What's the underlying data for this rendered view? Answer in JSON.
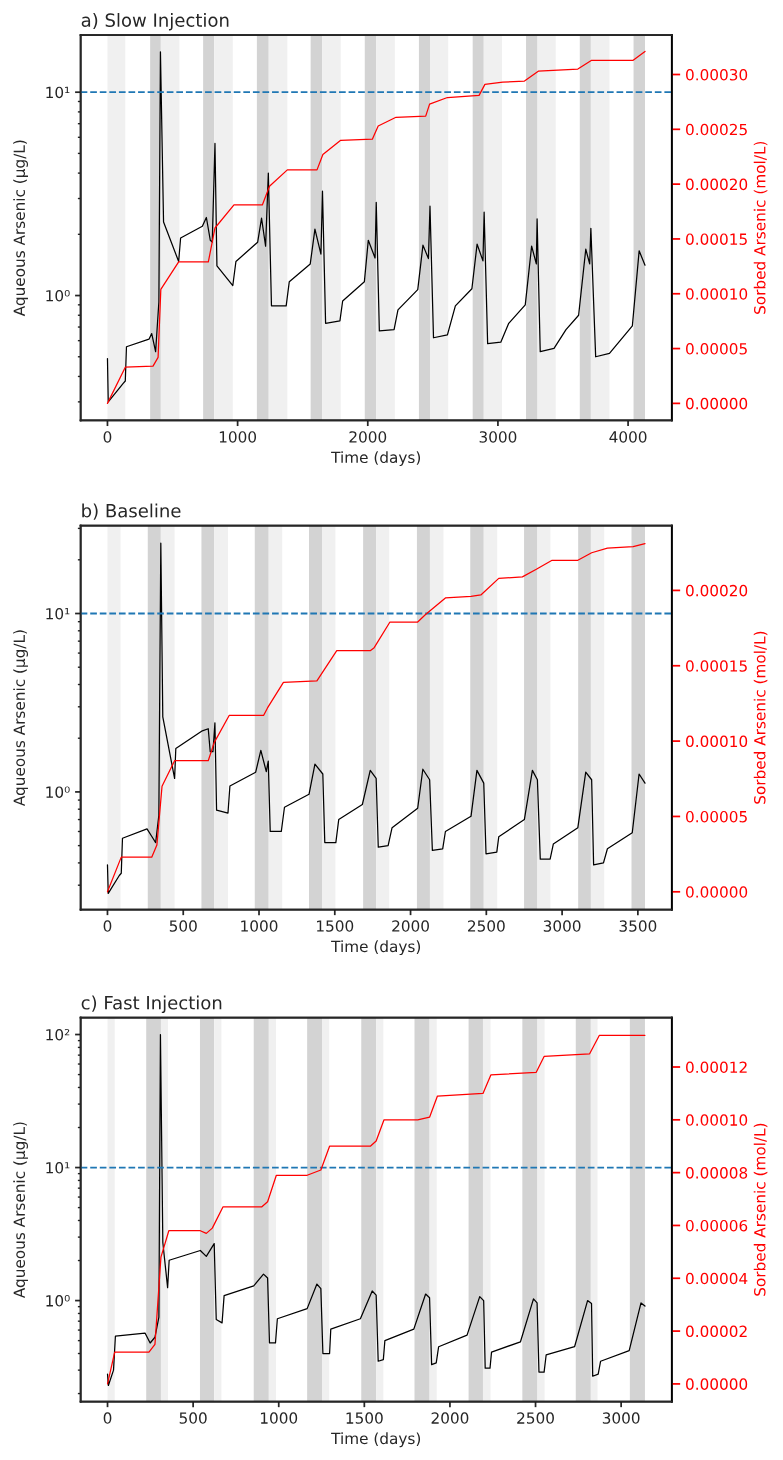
{
  "chart_data": [
    {
      "type": "line",
      "title": "a) Slow Injection",
      "xlabel": "Time (days)",
      "ylabel": "Aqueous Arsenic (µg/L)",
      "y2label": "Sorbed Arsenic (mol/L)",
      "xlim": [
        -206,
        4336
      ],
      "xticks": [
        0,
        1000,
        2000,
        3000,
        4000
      ],
      "log": true,
      "ylim": [
        0.243,
        19.1
      ],
      "yticks": [
        {
          "value": 1,
          "label": "10⁰"
        },
        {
          "value": 10,
          "label": "10¹"
        }
      ],
      "y2lim": [
        -1.56e-05,
        0.000336
      ],
      "y2ticks": [
        {
          "value": 0,
          "label": "0.00000"
        },
        {
          "value": 5e-05,
          "label": "0.00005"
        },
        {
          "value": 0.0001,
          "label": "0.00010"
        },
        {
          "value": 0.00015,
          "label": "0.00015"
        },
        {
          "value": 0.0002,
          "label": "0.00020"
        },
        {
          "value": 0.00025,
          "label": "0.00025"
        },
        {
          "value": 0.0003,
          "label": "0.00030"
        }
      ],
      "grid": false,
      "line_style": "solid",
      "marker": "none",
      "ref_lines": [
        {
          "axis": "y",
          "value": 10,
          "color": "#1f77b4",
          "line_style": "dashed"
        }
      ],
      "bands": [
        {
          "axis": "x",
          "from": 0,
          "to": 137,
          "color": "#f0f0f0"
        },
        {
          "axis": "x",
          "from": 328,
          "to": 410,
          "color": "#d3d3d3"
        },
        {
          "axis": "x",
          "from": 410,
          "to": 553,
          "color": "#f0f0f0"
        },
        {
          "axis": "x",
          "from": 735,
          "to": 820,
          "color": "#d3d3d3"
        },
        {
          "axis": "x",
          "from": 820,
          "to": 963,
          "color": "#f0f0f0"
        },
        {
          "axis": "x",
          "from": 1148,
          "to": 1239,
          "color": "#d3d3d3"
        },
        {
          "axis": "x",
          "from": 1239,
          "to": 1382,
          "color": "#f0f0f0"
        },
        {
          "axis": "x",
          "from": 1561,
          "to": 1649,
          "color": "#d3d3d3"
        },
        {
          "axis": "x",
          "from": 1649,
          "to": 1792,
          "color": "#f0f0f0"
        },
        {
          "axis": "x",
          "from": 1977,
          "to": 2065,
          "color": "#d3d3d3"
        },
        {
          "axis": "x",
          "from": 2065,
          "to": 2208,
          "color": "#f0f0f0"
        },
        {
          "axis": "x",
          "from": 2393,
          "to": 2478,
          "color": "#d3d3d3"
        },
        {
          "axis": "x",
          "from": 2478,
          "to": 2618,
          "color": "#f0f0f0"
        },
        {
          "axis": "x",
          "from": 2806,
          "to": 2891,
          "color": "#d3d3d3"
        },
        {
          "axis": "x",
          "from": 2891,
          "to": 3031,
          "color": "#f0f0f0"
        },
        {
          "axis": "x",
          "from": 3216,
          "to": 3304,
          "color": "#d3d3d3"
        },
        {
          "axis": "x",
          "from": 3304,
          "to": 3444,
          "color": "#f0f0f0"
        },
        {
          "axis": "x",
          "from": 3629,
          "to": 3714,
          "color": "#d3d3d3"
        },
        {
          "axis": "x",
          "from": 3714,
          "to": 3857,
          "color": "#f0f0f0"
        },
        {
          "axis": "x",
          "from": 4042,
          "to": 4130,
          "color": "#d3d3d3"
        }
      ],
      "series": [
        {
          "type": "line",
          "axis": "y2",
          "color": "#ff0000",
          "x": [
            0,
            137,
            350,
            389,
            410,
            547,
            775,
            826,
            972,
            1190,
            1245,
            1382,
            1610,
            1655,
            1792,
            2035,
            2080,
            2217,
            2445,
            2475,
            2612,
            2855,
            2900,
            3037,
            3204,
            3310,
            3614,
            3720,
            4039,
            4130
          ],
          "values": [
            0,
            3.3e-05,
            3.4e-05,
            4.2e-05,
            0.000104,
            0.000129,
            0.000129,
            0.00016,
            0.000181,
            0.000181,
            0.000198,
            0.000213,
            0.000213,
            0.000227,
            0.00024,
            0.000241,
            0.000253,
            0.000261,
            0.000262,
            0.000273,
            0.000279,
            0.000281,
            0.000291,
            0.000293,
            0.000294,
            0.000303,
            0.000305,
            0.000313,
            0.000313,
            0.000321
          ]
        },
        {
          "type": "line",
          "axis": "y",
          "color": "#000000",
          "x": [
            0,
            6,
            121,
            137,
            146,
            319,
            340,
            370,
            395,
            407,
            431,
            547,
            562,
            729,
            760,
            790,
            805,
            826,
            841,
            963,
            987,
            1154,
            1184,
            1215,
            1236,
            1260,
            1373,
            1397,
            1558,
            1594,
            1640,
            1652,
            1676,
            1786,
            1807,
            1974,
            2004,
            2056,
            2065,
            2089,
            2202,
            2232,
            2384,
            2424,
            2466,
            2478,
            2505,
            2612,
            2673,
            2800,
            2840,
            2885,
            2894,
            2921,
            3022,
            3083,
            3210,
            3259,
            3295,
            3301,
            3325,
            3431,
            3523,
            3620,
            3675,
            3705,
            3714,
            3751,
            3857,
            4033,
            4085,
            4130
          ],
          "values": [
            0.49,
            0.3,
            0.37,
            0.38,
            0.56,
            0.61,
            0.65,
            0.53,
            0.93,
            15.8,
            2.3,
            1.47,
            1.92,
            2.19,
            2.42,
            1.87,
            1.83,
            5.6,
            1.4,
            1.12,
            1.47,
            1.83,
            2.4,
            1.75,
            4.0,
            0.89,
            0.89,
            1.17,
            1.43,
            2.12,
            1.6,
            3.26,
            0.73,
            0.75,
            0.94,
            1.17,
            1.87,
            1.53,
            2.87,
            0.67,
            0.68,
            0.85,
            1.07,
            1.77,
            1.52,
            2.75,
            0.62,
            0.64,
            0.89,
            1.08,
            1.79,
            1.48,
            2.57,
            0.58,
            0.59,
            0.73,
            0.9,
            1.75,
            1.43,
            2.38,
            0.53,
            0.55,
            0.68,
            0.8,
            1.69,
            1.43,
            2.14,
            0.5,
            0.52,
            0.71,
            1.66,
            1.41
          ]
        }
      ]
    },
    {
      "type": "line",
      "title": "b) Baseline",
      "xlabel": "Time (days)",
      "ylabel": "Aqueous Arsenic (µg/L)",
      "y2label": "Sorbed Arsenic (mol/L)",
      "xlim": [
        -177,
        3724
      ],
      "xticks": [
        0,
        500,
        1000,
        1500,
        2000,
        2500,
        3000,
        3500
      ],
      "log": true,
      "ylim": [
        0.219,
        31.1
      ],
      "yticks": [
        {
          "value": 1,
          "label": "10⁰"
        },
        {
          "value": 10,
          "label": "10¹"
        }
      ],
      "y2lim": [
        -1.18e-05,
        0.000243
      ],
      "y2ticks": [
        {
          "value": 0,
          "label": "0.00000"
        },
        {
          "value": 5e-05,
          "label": "0.00005"
        },
        {
          "value": 0.0001,
          "label": "0.00010"
        },
        {
          "value": 0.00015,
          "label": "0.00015"
        },
        {
          "value": 0.0002,
          "label": "0.00020"
        }
      ],
      "grid": false,
      "line_style": "solid",
      "marker": "none",
      "ref_lines": [
        {
          "axis": "y",
          "value": 10,
          "color": "#1f77b4",
          "line_style": "dashed"
        }
      ],
      "bands": [
        {
          "axis": "x",
          "from": 0,
          "to": 86,
          "color": "#f0f0f0"
        },
        {
          "axis": "x",
          "from": 266,
          "to": 352,
          "color": "#d3d3d3"
        },
        {
          "axis": "x",
          "from": 352,
          "to": 443,
          "color": "#f0f0f0"
        },
        {
          "axis": "x",
          "from": 620,
          "to": 704,
          "color": "#d3d3d3"
        },
        {
          "axis": "x",
          "from": 704,
          "to": 795,
          "color": "#f0f0f0"
        },
        {
          "axis": "x",
          "from": 972,
          "to": 1064,
          "color": "#d3d3d3"
        },
        {
          "axis": "x",
          "from": 1064,
          "to": 1153,
          "color": "#f0f0f0"
        },
        {
          "axis": "x",
          "from": 1330,
          "to": 1416,
          "color": "#d3d3d3"
        },
        {
          "axis": "x",
          "from": 1416,
          "to": 1504,
          "color": "#f0f0f0"
        },
        {
          "axis": "x",
          "from": 1687,
          "to": 1773,
          "color": "#d3d3d3"
        },
        {
          "axis": "x",
          "from": 1773,
          "to": 1859,
          "color": "#f0f0f0"
        },
        {
          "axis": "x",
          "from": 2042,
          "to": 2128,
          "color": "#d3d3d3"
        },
        {
          "axis": "x",
          "from": 2128,
          "to": 2217,
          "color": "#f0f0f0"
        },
        {
          "axis": "x",
          "from": 2394,
          "to": 2483,
          "color": "#d3d3d3"
        },
        {
          "axis": "x",
          "from": 2483,
          "to": 2572,
          "color": "#f0f0f0"
        },
        {
          "axis": "x",
          "from": 2749,
          "to": 2837,
          "color": "#d3d3d3"
        },
        {
          "axis": "x",
          "from": 2837,
          "to": 2923,
          "color": "#f0f0f0"
        },
        {
          "axis": "x",
          "from": 3106,
          "to": 3190,
          "color": "#d3d3d3"
        },
        {
          "axis": "x",
          "from": 3190,
          "to": 3278,
          "color": "#f0f0f0"
        },
        {
          "axis": "x",
          "from": 3458,
          "to": 3547,
          "color": "#d3d3d3"
        }
      ],
      "series": [
        {
          "type": "line",
          "axis": "y2",
          "color": "#ff0000",
          "x": [
            0,
            91,
            292,
            326,
            360,
            443,
            665,
            704,
            803,
            1030,
            1056,
            1161,
            1382,
            1408,
            1513,
            1734,
            1760,
            1864,
            2047,
            2099,
            2230,
            2399,
            2464,
            2582,
            2738,
            2830,
            2934,
            3104,
            3195,
            3299,
            3469,
            3547
          ],
          "values": [
            0,
            2.3e-05,
            2.3e-05,
            3.1e-05,
            7e-05,
            8.7e-05,
            8.7e-05,
            9.9e-05,
            0.000117,
            0.000117,
            0.000122,
            0.000139,
            0.00014,
            0.000144,
            0.00016,
            0.00016,
            0.000162,
            0.000179,
            0.000179,
            0.000184,
            0.000195,
            0.000196,
            0.000197,
            0.000208,
            0.000209,
            0.000214,
            0.00022,
            0.00022,
            0.000225,
            0.000228,
            0.000229,
            0.000231
          ]
        },
        {
          "type": "line",
          "axis": "y",
          "color": "#000000",
          "x": [
            0,
            5,
            78,
            91,
            99,
            261,
            300,
            318,
            339,
            352,
            365,
            443,
            451,
            626,
            665,
            678,
            696,
            709,
            720,
            795,
            808,
            978,
            1012,
            1048,
            1061,
            1074,
            1147,
            1168,
            1330,
            1369,
            1421,
            1434,
            1507,
            1526,
            1682,
            1734,
            1773,
            1787,
            1852,
            1878,
            2047,
            2081,
            2126,
            2144,
            2212,
            2230,
            2399,
            2438,
            2483,
            2498,
            2569,
            2582,
            2751,
            2804,
            2837,
            2856,
            2921,
            2942,
            3104,
            3156,
            3195,
            3208,
            3273,
            3299,
            3463,
            3508,
            3547
          ],
          "values": [
            0.39,
            0.27,
            0.34,
            0.35,
            0.55,
            0.62,
            0.55,
            0.52,
            0.74,
            24.8,
            2.63,
            1.19,
            1.75,
            2.2,
            2.26,
            1.68,
            1.68,
            2.44,
            0.79,
            0.76,
            1.08,
            1.29,
            1.71,
            1.3,
            1.49,
            0.6,
            0.6,
            0.82,
            0.97,
            1.43,
            1.26,
            0.52,
            0.52,
            0.7,
            0.85,
            1.32,
            1.19,
            0.49,
            0.5,
            0.63,
            0.81,
            1.34,
            1.17,
            0.47,
            0.48,
            0.6,
            0.73,
            1.32,
            1.12,
            0.45,
            0.46,
            0.56,
            0.7,
            1.32,
            1.17,
            0.42,
            0.42,
            0.51,
            0.63,
            1.29,
            1.17,
            0.39,
            0.4,
            0.48,
            0.59,
            1.26,
            1.12
          ]
        }
      ]
    },
    {
      "type": "line",
      "title": "c) Fast Injection",
      "xlabel": "Time (days)",
      "ylabel": "Aqueous Arsenic (µg/L)",
      "y2label": "Sorbed Arsenic (mol/L)",
      "xlim": [
        -157,
        3296
      ],
      "xticks": [
        0,
        500,
        1000,
        1500,
        2000,
        2500,
        3000
      ],
      "log": true,
      "ylim": [
        0.174,
        134
      ],
      "yticks": [
        {
          "value": 1,
          "label": "10⁰"
        },
        {
          "value": 10,
          "label": "10¹"
        },
        {
          "value": 100,
          "label": "10²"
        }
      ],
      "y2lim": [
        -6.7e-06,
        0.0001387
      ],
      "y2ticks": [
        {
          "value": 0,
          "label": "0.00000"
        },
        {
          "value": 2e-05,
          "label": "0.00002"
        },
        {
          "value": 4e-05,
          "label": "0.00004"
        },
        {
          "value": 6e-05,
          "label": "0.00006"
        },
        {
          "value": 8e-05,
          "label": "0.00008"
        },
        {
          "value": 0.0001,
          "label": "0.00010"
        },
        {
          "value": 0.00012,
          "label": "0.00012"
        }
      ],
      "grid": false,
      "line_style": "solid",
      "marker": "none",
      "ref_lines": [
        {
          "axis": "y",
          "value": 10,
          "color": "#1f77b4",
          "line_style": "dashed"
        }
      ],
      "bands": [
        {
          "axis": "x",
          "from": 0,
          "to": 42,
          "color": "#f0f0f0"
        },
        {
          "axis": "x",
          "from": 226,
          "to": 312,
          "color": "#d3d3d3"
        },
        {
          "axis": "x",
          "from": 312,
          "to": 353,
          "color": "#f0f0f0"
        },
        {
          "axis": "x",
          "from": 540,
          "to": 623,
          "color": "#d3d3d3"
        },
        {
          "axis": "x",
          "from": 623,
          "to": 665,
          "color": "#f0f0f0"
        },
        {
          "axis": "x",
          "from": 854,
          "to": 942,
          "color": "#d3d3d3"
        },
        {
          "axis": "x",
          "from": 942,
          "to": 984,
          "color": "#f0f0f0"
        },
        {
          "axis": "x",
          "from": 1166,
          "to": 1253,
          "color": "#d3d3d3"
        },
        {
          "axis": "x",
          "from": 1253,
          "to": 1295,
          "color": "#f0f0f0"
        },
        {
          "axis": "x",
          "from": 1482,
          "to": 1569,
          "color": "#d3d3d3"
        },
        {
          "axis": "x",
          "from": 1569,
          "to": 1611,
          "color": "#f0f0f0"
        },
        {
          "axis": "x",
          "from": 1793,
          "to": 1881,
          "color": "#d3d3d3"
        },
        {
          "axis": "x",
          "from": 1881,
          "to": 1923,
          "color": "#f0f0f0"
        },
        {
          "axis": "x",
          "from": 2109,
          "to": 2193,
          "color": "#d3d3d3"
        },
        {
          "axis": "x",
          "from": 2193,
          "to": 2237,
          "color": "#f0f0f0"
        },
        {
          "axis": "x",
          "from": 2423,
          "to": 2511,
          "color": "#d3d3d3"
        },
        {
          "axis": "x",
          "from": 2511,
          "to": 2553,
          "color": "#f0f0f0"
        },
        {
          "axis": "x",
          "from": 2735,
          "to": 2823,
          "color": "#d3d3d3"
        },
        {
          "axis": "x",
          "from": 2823,
          "to": 2862,
          "color": "#f0f0f0"
        },
        {
          "axis": "x",
          "from": 3051,
          "to": 3139,
          "color": "#d3d3d3"
        }
      ],
      "series": [
        {
          "type": "line",
          "axis": "y2",
          "color": "#ff0000",
          "x": [
            0,
            42,
            242,
            277,
            312,
            358,
            542,
            577,
            612,
            674,
            900,
            935,
            986,
            1166,
            1246,
            1297,
            1535,
            1569,
            1615,
            1812,
            1881,
            1927,
            2193,
            2239,
            2504,
            2550,
            2816,
            2873,
            3139
          ],
          "values": [
            0,
            1.2e-05,
            1.2e-05,
            1.5e-05,
            4.8e-05,
            5.8e-05,
            5.8e-05,
            5.7e-05,
            5.9e-05,
            6.7e-05,
            6.7e-05,
            6.9e-05,
            7.9e-05,
            7.9e-05,
            8.1e-05,
            9e-05,
            9e-05,
            9.2e-05,
            0.0001,
            0.0001,
            0.000101,
            0.000109,
            0.00011,
            0.000117,
            0.000118,
            0.000124,
            0.000125,
            0.000132,
            0.000132
          ]
        },
        {
          "type": "line",
          "axis": "y",
          "color": "#000000",
          "x": [
            0,
            5,
            35,
            46,
            219,
            249,
            277,
            300,
            309,
            323,
            351,
            360,
            542,
            577,
            623,
            635,
            669,
            681,
            854,
            911,
            935,
            946,
            981,
            992,
            1166,
            1223,
            1246,
            1258,
            1297,
            1304,
            1477,
            1546,
            1569,
            1581,
            1611,
            1620,
            1789,
            1858,
            1881,
            1893,
            1920,
            1934,
            2100,
            2174,
            2197,
            2206,
            2234,
            2243,
            2412,
            2488,
            2509,
            2520,
            2550,
            2562,
            2728,
            2804,
            2827,
            2834,
            2866,
            2880,
            3047,
            3116,
            3139
          ],
          "values": [
            0.28,
            0.23,
            0.3,
            0.54,
            0.57,
            0.48,
            0.53,
            0.75,
            100,
            2.73,
            1.25,
            2.01,
            2.38,
            2.15,
            2.68,
            0.72,
            0.68,
            1.09,
            1.29,
            1.58,
            1.48,
            0.48,
            0.48,
            0.73,
            0.87,
            1.33,
            1.23,
            0.4,
            0.4,
            0.61,
            0.73,
            1.18,
            1.1,
            0.35,
            0.36,
            0.5,
            0.61,
            1.12,
            1.05,
            0.33,
            0.34,
            0.45,
            0.55,
            1.07,
            1.0,
            0.31,
            0.31,
            0.41,
            0.49,
            1.03,
            0.96,
            0.29,
            0.29,
            0.39,
            0.45,
            1.0,
            0.95,
            0.27,
            0.28,
            0.35,
            0.42,
            0.96,
            0.91
          ]
        }
      ]
    }
  ]
}
